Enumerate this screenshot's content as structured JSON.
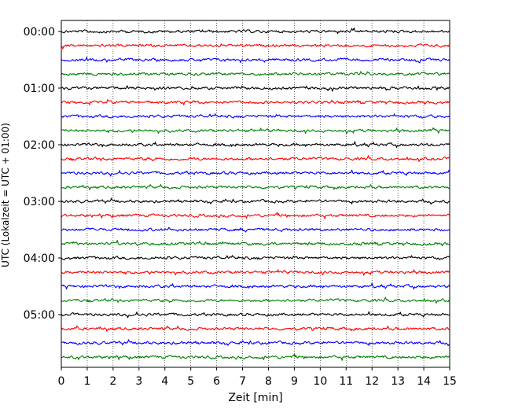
{
  "chart_data": {
    "type": "line",
    "title": "",
    "xlabel": "Zeit  [min]",
    "ylabel": "UTC (Lokalzeit = UTC + 01:00)",
    "xlim": [
      0,
      15
    ],
    "x_ticks": [
      0,
      1,
      2,
      3,
      4,
      5,
      6,
      7,
      8,
      9,
      10,
      11,
      12,
      13,
      14,
      15
    ],
    "y_tick_labels": [
      "00:00",
      "01:00",
      "02:00",
      "03:00",
      "04:00",
      "05:00"
    ],
    "trace_interval_min": 15,
    "trace_count": 24,
    "trace_colors": [
      "#000000",
      "#ff0000",
      "#0000ff",
      "#008000"
    ],
    "grid": "vertical dotted lines at each minute",
    "legend": "none"
  }
}
